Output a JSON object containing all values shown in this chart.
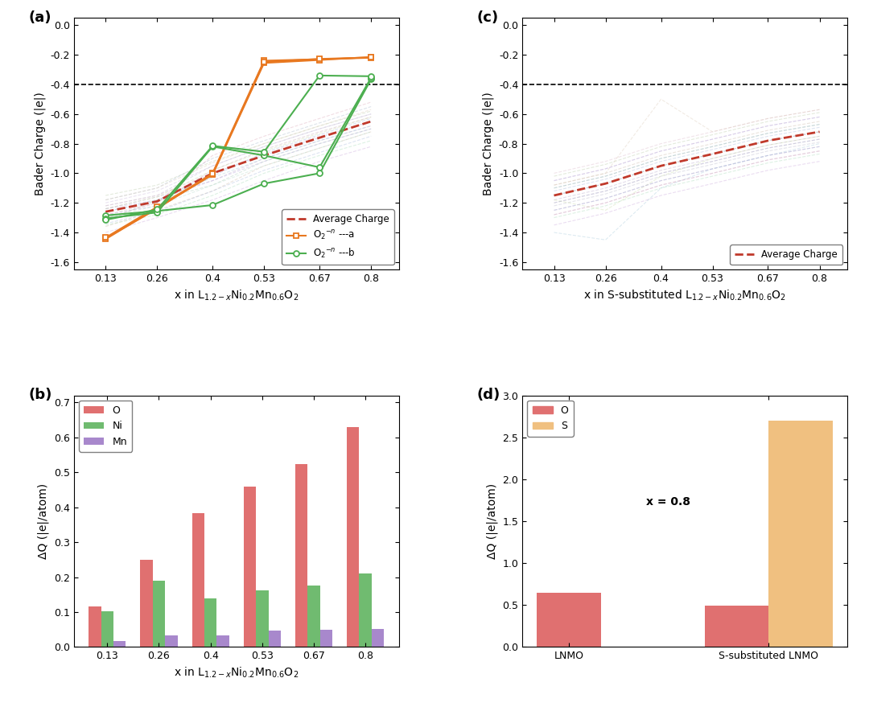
{
  "x_ticks": [
    0.13,
    0.26,
    0.4,
    0.53,
    0.67,
    0.8
  ],
  "avg_charge_a": [
    -1.26,
    -1.19,
    -1.0,
    -0.88,
    -0.76,
    -0.65
  ],
  "avg_charge_c": [
    -1.15,
    -1.07,
    -0.95,
    -0.87,
    -0.78,
    -0.72
  ],
  "o2n_a_line1": [
    -1.44,
    -1.24,
    -1.0,
    -0.24,
    -0.23,
    -0.22
  ],
  "o2n_a_line2": [
    -1.445,
    -1.235,
    -1.01,
    -0.255,
    -0.235,
    -0.215
  ],
  "o2n_a_line3": [
    -1.435,
    -1.228,
    -1.005,
    -0.248,
    -0.228,
    -0.218
  ],
  "o2n_b_line1": [
    -1.285,
    -1.255,
    -1.215,
    -1.07,
    -1.0,
    -0.365
  ],
  "o2n_b_line2": [
    -1.305,
    -1.265,
    -0.82,
    -0.88,
    -0.96,
    -0.355
  ],
  "o2n_b_line3": [
    -1.315,
    -1.245,
    -0.815,
    -0.855,
    -0.34,
    -0.345
  ],
  "bg_lines_a": [
    [
      -1.26,
      -1.19,
      -1.0,
      -0.88,
      -0.76,
      -0.65
    ],
    [
      -1.24,
      -1.16,
      -1.05,
      -0.9,
      -0.78,
      -0.68
    ],
    [
      -1.28,
      -1.22,
      -1.02,
      -0.86,
      -0.74,
      -0.63
    ],
    [
      -1.3,
      -1.2,
      -0.98,
      -0.84,
      -0.72,
      -0.62
    ],
    [
      -1.32,
      -1.18,
      -1.08,
      -0.92,
      -0.8,
      -0.7
    ],
    [
      -1.22,
      -1.15,
      -0.95,
      -0.82,
      -0.7,
      -0.6
    ],
    [
      -1.36,
      -1.25,
      -1.12,
      -0.95,
      -0.83,
      -0.72
    ],
    [
      -1.18,
      -1.1,
      -0.9,
      -0.78,
      -0.66,
      -0.55
    ],
    [
      -1.24,
      -1.18,
      -1.05,
      -0.92,
      -0.8,
      -0.7
    ],
    [
      -1.2,
      -1.12,
      -0.95,
      -0.82,
      -0.7,
      -0.6
    ],
    [
      -1.28,
      -1.2,
      -0.88,
      -0.75,
      -0.63,
      -0.52
    ],
    [
      -1.35,
      -1.28,
      -1.15,
      -1.0,
      -0.88,
      -0.78
    ],
    [
      -1.15,
      -1.08,
      -0.92,
      -0.8,
      -0.68,
      -0.58
    ],
    [
      -1.4,
      -1.3,
      -1.18,
      -1.05,
      -0.92,
      -0.82
    ],
    [
      -1.22,
      -1.15,
      -1.0,
      -0.87,
      -0.75,
      -0.65
    ],
    [
      -1.26,
      -1.18,
      -1.03,
      -0.9,
      -0.78,
      -0.68
    ],
    [
      -1.3,
      -1.22,
      -1.08,
      -0.95,
      -0.83,
      -0.72
    ],
    [
      -1.24,
      -1.16,
      -0.98,
      -0.85,
      -0.73,
      -0.62
    ],
    [
      -1.18,
      -1.1,
      -0.93,
      -0.8,
      -0.68,
      -0.57
    ],
    [
      -1.34,
      -1.26,
      -1.12,
      -0.98,
      -0.86,
      -0.75
    ]
  ],
  "bg_colors_a": [
    "#AAAADD",
    "#BBAACC",
    "#AABBDD",
    "#CCAABB",
    "#AACCBB",
    "#BBBBCC",
    "#CCBBAA",
    "#AABBCC",
    "#BBAADD",
    "#CCBBDD",
    "#DDAABB",
    "#AADDBB",
    "#BBCCAA",
    "#CCAADD",
    "#DDBBCC",
    "#AACCDD",
    "#BBDDCC",
    "#CCDDAA",
    "#DDCCBB",
    "#AABBDD"
  ],
  "bg_lines_c": [
    [
      -1.15,
      -1.07,
      -0.95,
      -0.87,
      -0.78,
      -0.72
    ],
    [
      -1.18,
      -1.1,
      -0.98,
      -0.9,
      -0.81,
      -0.75
    ],
    [
      -1.12,
      -1.04,
      -0.92,
      -0.84,
      -0.75,
      -0.69
    ],
    [
      -1.2,
      -1.12,
      -1.0,
      -0.92,
      -0.83,
      -0.77
    ],
    [
      -1.1,
      -1.02,
      -0.9,
      -0.82,
      -0.73,
      -0.67
    ],
    [
      -1.22,
      -1.14,
      -1.02,
      -0.94,
      -0.85,
      -0.79
    ],
    [
      -1.08,
      -1.0,
      -0.88,
      -0.8,
      -0.71,
      -0.65
    ],
    [
      -1.25,
      -1.17,
      -1.05,
      -0.97,
      -0.88,
      -0.82
    ],
    [
      -1.05,
      -0.97,
      -0.85,
      -0.77,
      -0.68,
      -0.62
    ],
    [
      -1.28,
      -1.2,
      -1.08,
      -1.0,
      -0.91,
      -0.85
    ],
    [
      -1.15,
      -1.07,
      -0.95,
      -0.87,
      -0.78,
      -0.72
    ],
    [
      -1.3,
      -1.22,
      -1.1,
      -1.02,
      -0.93,
      -0.87
    ],
    [
      -1.02,
      -0.94,
      -0.82,
      -0.74,
      -0.65,
      -0.59
    ],
    [
      -1.35,
      -1.27,
      -1.15,
      -1.07,
      -0.98,
      -0.92
    ],
    [
      -1.0,
      -0.92,
      -0.8,
      -0.72,
      -0.63,
      -0.57
    ],
    [
      -1.4,
      -1.45,
      -1.1,
      -0.97,
      -0.88,
      -0.8
    ],
    [
      -1.15,
      -1.07,
      -0.95,
      -0.87,
      -0.78,
      -0.72
    ],
    [
      -1.18,
      -1.25,
      -1.02,
      -0.9,
      -0.81,
      -0.75
    ],
    [
      -1.08,
      -1.0,
      -0.5,
      -0.72,
      -0.63,
      -0.57
    ],
    [
      -1.2,
      -1.12,
      -1.0,
      -0.92,
      -0.83,
      -0.77
    ],
    [
      -1.1,
      -1.02,
      -0.9,
      -0.82,
      -0.73,
      -0.67
    ],
    [
      -1.25,
      -1.17,
      -1.05,
      -0.97,
      -0.88,
      -0.82
    ],
    [
      -1.05,
      -0.97,
      -0.85,
      -0.77,
      -0.68,
      -0.62
    ],
    [
      -1.28,
      -1.2,
      -1.08,
      -1.0,
      -0.91,
      -0.85
    ]
  ],
  "bg_colors_c": [
    "#AAAADD",
    "#BBAACC",
    "#AABBDD",
    "#CCAABB",
    "#AACCBB",
    "#BBBBCC",
    "#CCBBAA",
    "#AABBCC",
    "#BBAADD",
    "#CCBBDD",
    "#DDAABB",
    "#AADDBB",
    "#BBCCAA",
    "#CCAADD",
    "#DDBBCC",
    "#AACCDD",
    "#BBDDCC",
    "#CCDDAA",
    "#DDCCBB",
    "#AABBDD",
    "#AABBCC",
    "#BBAADD",
    "#CCBBDD",
    "#DDAABB"
  ],
  "bar_x_labels": [
    "0.13",
    "0.26",
    "0.4",
    "0.53",
    "0.67",
    "0.8"
  ],
  "bar_O": [
    0.117,
    0.249,
    0.383,
    0.46,
    0.523,
    0.63
  ],
  "bar_Ni": [
    0.103,
    0.19,
    0.138,
    0.161,
    0.176,
    0.21
  ],
  "bar_Mn": [
    0.018,
    0.033,
    0.033,
    0.047,
    0.05,
    0.052
  ],
  "bar_d_labels": [
    "LNMO",
    "S-substituted LNMO"
  ],
  "bar_d_O": [
    0.645,
    0.49
  ],
  "bar_d_S": [
    0.0,
    2.7
  ],
  "color_orange": "#E87820",
  "color_green": "#4CAF50",
  "color_red_dash": "#C0392B",
  "color_bar_O": "#E07070",
  "color_bar_Ni": "#70BB70",
  "color_bar_Mn": "#A888CC",
  "color_bar_S": "#F0C080",
  "color_bg_line": "#AAAACC"
}
